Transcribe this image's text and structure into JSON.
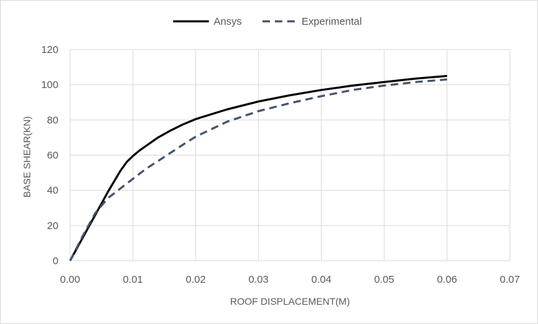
{
  "chart_data": {
    "type": "line",
    "title": "",
    "xlabel": "ROOF DISPLACEMENT(M)",
    "ylabel": "BASE SHEAR(KN)",
    "xlim": [
      0,
      0.07
    ],
    "ylim": [
      0,
      120
    ],
    "x_ticks": [
      "0.00",
      "0.01",
      "0.02",
      "0.03",
      "0.04",
      "0.05",
      "0.06",
      "0.07"
    ],
    "y_ticks": [
      "0",
      "20",
      "40",
      "60",
      "80",
      "100",
      "120"
    ],
    "grid": true,
    "legend_position": "top",
    "series": [
      {
        "name": "Ansys",
        "color": "#000000",
        "style": "solid",
        "x": [
          0,
          0.002,
          0.004,
          0.006,
          0.008,
          0.009,
          0.01,
          0.011,
          0.012,
          0.014,
          0.016,
          0.018,
          0.02,
          0.025,
          0.03,
          0.035,
          0.04,
          0.045,
          0.05,
          0.055,
          0.06
        ],
        "y": [
          0,
          13,
          26,
          39,
          51,
          56,
          59.5,
          62.5,
          65,
          70,
          74,
          77.5,
          80.5,
          86,
          90.5,
          94,
          97,
          99.5,
          101.5,
          103.5,
          105
        ]
      },
      {
        "name": "Experimental",
        "color": "#44546a",
        "style": "dashed",
        "x": [
          0,
          0.002,
          0.004,
          0.006,
          0.008,
          0.01,
          0.012,
          0.015,
          0.018,
          0.02,
          0.025,
          0.03,
          0.035,
          0.04,
          0.045,
          0.05,
          0.055,
          0.06
        ],
        "y": [
          0,
          14,
          27,
          35.5,
          41,
          46.5,
          52,
          59,
          66,
          70.5,
          79,
          85,
          89.5,
          93.5,
          97,
          99.5,
          101.5,
          103
        ]
      }
    ]
  }
}
